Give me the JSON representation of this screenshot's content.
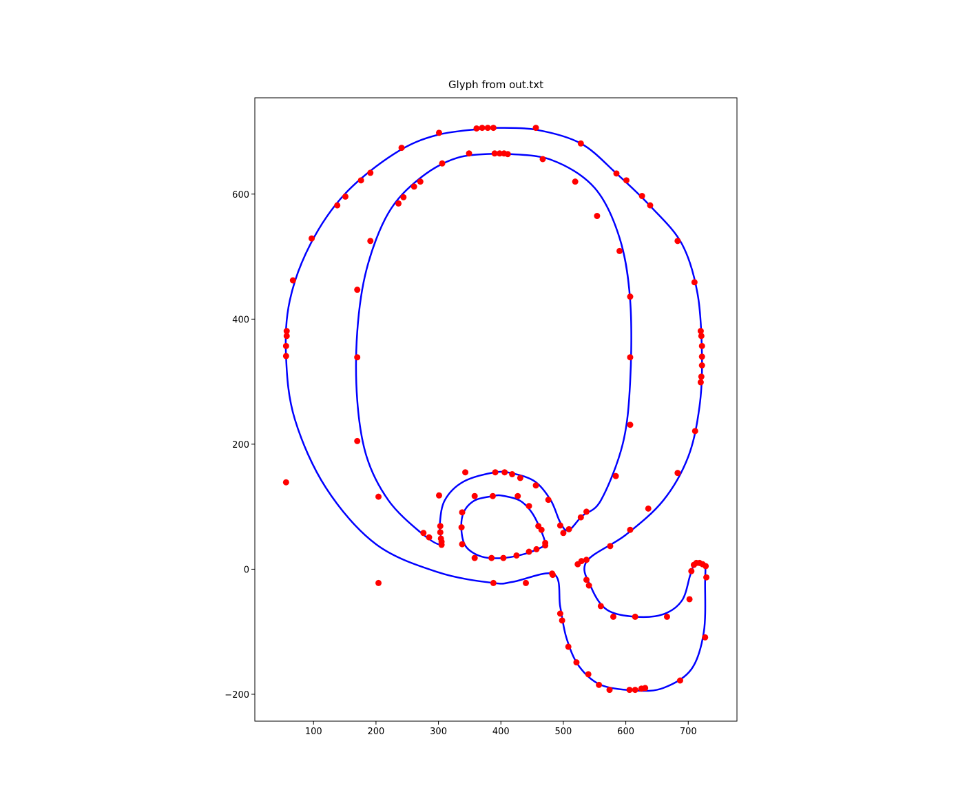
{
  "chart_data": {
    "type": "line",
    "title": "Glyph from out.txt",
    "xlim": [
      6,
      778
    ],
    "ylim": [
      -243,
      754
    ],
    "xticks": [
      100,
      200,
      300,
      400,
      500,
      600,
      700
    ],
    "yticks": [
      {
        "value": -200,
        "label": "−200"
      },
      0,
      200,
      400,
      600
    ],
    "series": [
      {
        "type": "line",
        "color": "#0000ff",
        "x": [
          390,
          456,
          528,
          585,
          640,
          690,
          715,
          722,
          718,
          700,
          660,
          600,
          537,
          545,
          570,
          615,
          660,
          690,
          703,
          710,
          720,
          727,
          727,
          725,
          705,
          660,
          615,
          560,
          525,
          505,
          495,
          485,
          420,
          388,
          300,
          200,
          120,
          70,
          56,
          62,
          95,
          150,
          230,
          300,
          390
        ],
        "values": [
          706,
          703,
          681,
          633,
          580,
          520,
          440,
          340,
          260,
          180,
          110,
          55,
          12,
          -30,
          -65,
          -76,
          -72,
          -50,
          -10,
          8,
          10,
          5,
          -20,
          -100,
          -160,
          -190,
          -194,
          -185,
          -155,
          -110,
          -60,
          -8,
          -20,
          -22,
          -5,
          40,
          130,
          240,
          340,
          430,
          520,
          600,
          665,
          695,
          706
        ]
      },
      {
        "type": "line",
        "color": "#0000ff",
        "x": [
          400,
          480,
          550,
          590,
          607,
          607,
          595,
          560,
          530,
          508,
          495,
          480,
          455,
          420,
          390,
          340,
          310,
          302,
          303,
          270,
          220,
          185,
          170,
          170,
          185,
          220,
          270,
          330,
          400
        ],
        "values": [
          665,
          655,
          610,
          530,
          430,
          300,
          200,
          110,
          85,
          62,
          75,
          110,
          140,
          153,
          155,
          140,
          110,
          70,
          40,
          60,
          110,
          180,
          270,
          380,
          480,
          570,
          625,
          658,
          665
        ]
      },
      {
        "type": "line",
        "color": "#0000ff",
        "x": [
          387,
          358,
          340,
          337,
          345,
          370,
          404,
          440,
          465,
          471,
          465,
          450,
          430,
          400,
          387
        ],
        "values": [
          117,
          110,
          90,
          60,
          35,
          20,
          18,
          25,
          35,
          40,
          60,
          90,
          110,
          118,
          117
        ]
      },
      {
        "type": "scatter",
        "color": "#ff0000",
        "x": [
          361,
          370,
          379,
          388,
          456,
          301,
          528,
          241,
          191,
          176,
          151,
          138,
          97,
          67,
          57,
          57,
          56,
          56,
          56,
          585,
          601,
          626,
          639,
          683,
          710,
          720,
          721,
          722,
          722,
          722,
          721,
          720,
          711,
          683,
          636,
          607,
          575,
          537,
          529,
          523,
          390,
          398,
          405,
          411,
          349,
          467,
          306,
          519,
          271,
          261,
          244,
          236,
          554,
          191,
          590,
          170,
          607,
          170,
          607,
          170,
          607,
          204,
          584,
          276,
          285,
          301,
          303,
          303,
          304,
          305,
          305,
          343,
          391,
          406,
          418,
          431,
          456,
          476,
          495,
          500,
          509,
          528,
          537,
          387,
          358,
          427,
          445,
          338,
          337,
          338,
          358,
          385,
          404,
          425,
          445,
          457,
          460,
          465,
          471,
          471,
          204,
          388,
          440,
          482,
          483,
          495,
          498,
          508,
          521,
          540,
          557,
          574,
          606,
          615,
          625,
          631,
          687,
          727,
          729,
          728,
          723,
          718,
          713,
          709,
          705,
          702,
          666,
          615,
          580,
          560,
          541,
          537
        ],
        "values": [
          705,
          706,
          706,
          706,
          706,
          698,
          681,
          674,
          634,
          622,
          596,
          582,
          529,
          462,
          381,
          373,
          357,
          341,
          139,
          633,
          622,
          597,
          582,
          525,
          459,
          381,
          373,
          357,
          340,
          326,
          308,
          299,
          221,
          154,
          97,
          63,
          37,
          15,
          13,
          8,
          665,
          665,
          665,
          664,
          665,
          656,
          649,
          620,
          620,
          612,
          595,
          585,
          565,
          525,
          509,
          447,
          436,
          339,
          339,
          205,
          231,
          116,
          149,
          58,
          51,
          118,
          69,
          59,
          49,
          44,
          39,
          155,
          155,
          155,
          152,
          146,
          134,
          111,
          70,
          58,
          64,
          83,
          92,
          117,
          117,
          117,
          101,
          91,
          67,
          40,
          18,
          18,
          18,
          22,
          28,
          32,
          69,
          63,
          42,
          38,
          -22,
          -22,
          -22,
          -7,
          -9,
          -71,
          -82,
          -124,
          -149,
          -168,
          -185,
          -193,
          -193,
          -193,
          -191,
          -190,
          -178,
          -109,
          -13,
          5,
          8,
          10,
          10,
          7,
          -3,
          -48,
          -76,
          -76,
          -76,
          -59,
          -26,
          -17
        ]
      }
    ]
  }
}
